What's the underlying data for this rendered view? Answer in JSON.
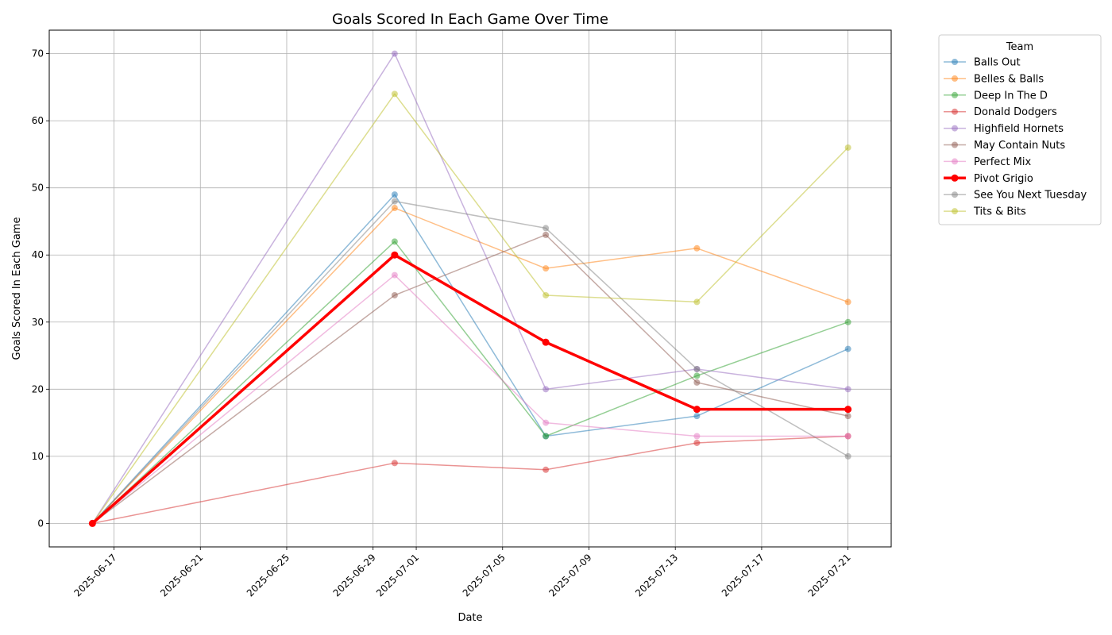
{
  "chart_data": {
    "type": "line",
    "title": "Goals Scored In Each Game Over Time",
    "xlabel": "Date",
    "ylabel": "Goals Scored In Each Game",
    "x": [
      "2025-06-16",
      "2025-06-30",
      "2025-07-07",
      "2025-07-14",
      "2025-07-21"
    ],
    "xlim": [
      "2025-06-14",
      "2025-07-23"
    ],
    "ylim": [
      -3.5,
      73.5
    ],
    "x_ticks": [
      "2025-06-17",
      "2025-06-21",
      "2025-06-25",
      "2025-06-29",
      "2025-07-01",
      "2025-07-05",
      "2025-07-09",
      "2025-07-13",
      "2025-07-17",
      "2025-07-21"
    ],
    "y_ticks": [
      0,
      10,
      20,
      30,
      40,
      50,
      60,
      70
    ],
    "grid": true,
    "legend_title": "Team",
    "legend_position": "outside-right",
    "series": [
      {
        "name": "Balls Out",
        "color": "#1f77b4",
        "values": [
          0,
          49,
          13,
          16,
          26
        ]
      },
      {
        "name": "Belles & Balls",
        "color": "#ff7f0e",
        "values": [
          0,
          47,
          38,
          41,
          33
        ]
      },
      {
        "name": "Deep In The D",
        "color": "#2ca02c",
        "values": [
          0,
          42,
          13,
          22,
          30
        ]
      },
      {
        "name": "Donald Dodgers",
        "color": "#d62728",
        "values": [
          0,
          9,
          8,
          12,
          13
        ]
      },
      {
        "name": "Highfield Hornets",
        "color": "#9467bd",
        "values": [
          0,
          70,
          20,
          23,
          20
        ]
      },
      {
        "name": "May Contain Nuts",
        "color": "#8c564b",
        "values": [
          0,
          34,
          43,
          21,
          16
        ]
      },
      {
        "name": "Perfect Mix",
        "color": "#e377c2",
        "values": [
          0,
          37,
          15,
          13,
          13
        ]
      },
      {
        "name": "Pivot Grigio",
        "color": "#ff0000",
        "values": [
          0,
          40,
          27,
          17,
          17
        ],
        "highlight": true
      },
      {
        "name": "See You Next Tuesday",
        "color": "#7f7f7f",
        "values": [
          0,
          48,
          44,
          23,
          10
        ]
      },
      {
        "name": "Tits & Bits",
        "color": "#bcbd22",
        "values": [
          0,
          64,
          34,
          33,
          56
        ]
      }
    ]
  }
}
